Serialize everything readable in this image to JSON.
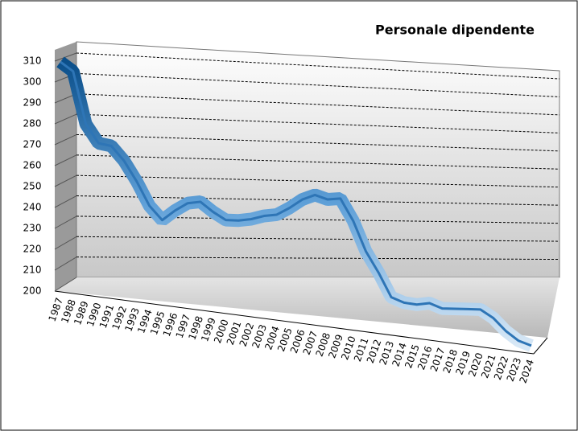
{
  "chart_data": {
    "type": "line",
    "title": "Personale dipendente",
    "categories": [
      "1987",
      "1988",
      "1989",
      "1990",
      "1991",
      "1992",
      "1993",
      "1994",
      "1995",
      "1996",
      "1997",
      "1998",
      "1999",
      "2000",
      "2001",
      "2002",
      "2003",
      "2004",
      "2005",
      "2006",
      "2007",
      "2008",
      "2009",
      "2010",
      "2011",
      "2012",
      "2013",
      "2014",
      "2015",
      "2016",
      "2017",
      "2018",
      "2019",
      "2020",
      "2021",
      "2022",
      "2023",
      "2024"
    ],
    "series": [
      {
        "name": "Personale dipendente",
        "color": "#2e75b6",
        "values": [
          310,
          307,
          283,
          275,
          275,
          269,
          260,
          249,
          243,
          249,
          254,
          256,
          252,
          249,
          250,
          252,
          255,
          257,
          262,
          268,
          272,
          271,
          273,
          262,
          246,
          235,
          222,
          220,
          220,
          222,
          220,
          221,
          222,
          223,
          219,
          212,
          207,
          205
        ]
      }
    ],
    "ylim": [
      200,
      310
    ],
    "yticks": [
      200,
      210,
      220,
      230,
      240,
      250,
      260,
      270,
      280,
      290,
      300,
      310
    ],
    "grid": true
  }
}
